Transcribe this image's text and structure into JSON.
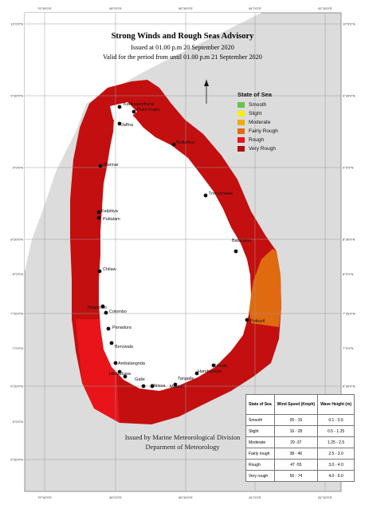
{
  "title": "Strong Winds and Rough Seas Advisory",
  "issued": "Issued at 01.00 p.m 20 September 2020",
  "valid": "Valid for the period from  until 01.00 p.m 21 September 2020",
  "footer": {
    "line1": "Issued by Marine Meteorological Division",
    "line2": "Deparment of Meteorology"
  },
  "axes": {
    "top": [
      "79°30'0\"E",
      "80°0'0\"E",
      "80°30'0\"E",
      "81°0'0\"E",
      "81°30'0\"E"
    ],
    "bottom": [
      "79°30'0\"E",
      "80°0'0\"E",
      "80°30'0\"E",
      "81°0'0\"E",
      "81°30'0\"E"
    ],
    "left": [
      "10°0'0\"N",
      "9°30'0\"N",
      "9°0'0\"N",
      "8°30'0\"N",
      "8°0'0\"N",
      "7°30'0\"N",
      "7°0'0\"N",
      "6°30'0\"N",
      "6°0'0\"N",
      "5°30'0\"N"
    ],
    "right": [
      "10°0'0\"N",
      "9°30'0\"N",
      "9°0'0\"N",
      "8°30'0\"N",
      "8°0'0\"N",
      "7°30'0\"N",
      "7°0'0\"N",
      "6°30'0\"N",
      "6°0'0\"N",
      "5°30'0\"N"
    ]
  },
  "legend": {
    "title": "State of Sea",
    "items": [
      {
        "label": "Smooth",
        "color": "#6cc04a"
      },
      {
        "label": "Slight",
        "color": "#f2f200"
      },
      {
        "label": "Moderate",
        "color": "#f2a900"
      },
      {
        "label": "Fairly Rough",
        "color": "#e06a10"
      },
      {
        "label": "Rough",
        "color": "#e8141a"
      },
      {
        "label": "Very Rough",
        "color": "#b00d0d"
      }
    ]
  },
  "zones": {
    "very_rough": "#c30f0f",
    "rough": "#e8141a",
    "fairly_rough": "#e06a10",
    "land": "#ffffff",
    "sea": "#dcdcdc"
  },
  "places": [
    "Kankasanthurai",
    "Point Pedro",
    "Jaffna",
    "Mullaitivu",
    "Mannar",
    "Trincomalee",
    "Puttalam",
    "Kalpitiya",
    "Batticaloa",
    "Chilaw",
    "Negombo",
    "Colombo",
    "Panadura",
    "Beruwala",
    "Pottuvil",
    "Ambalangoda",
    "Hikkaduwa",
    "Galle",
    "Matara",
    "Mirissa",
    "Tangalle",
    "Hambantota",
    "Kirinda"
  ],
  "table": {
    "headers": [
      "State of Sea",
      "Wind Speed (Kmph)",
      "Wave Height (m)"
    ],
    "rows": [
      [
        "Smooth",
        "05 - 15",
        "0.1 - 0.5"
      ],
      [
        "Slight",
        "16 - 28",
        "0.5 - 1.25"
      ],
      [
        "Moderate",
        "29 -37",
        "1.25 - 2.5"
      ],
      [
        "Fairly rough",
        "38 - 46",
        "2.5 - 3.0"
      ],
      [
        "Rough",
        "47 -55",
        "3.0 - 4.0"
      ],
      [
        "Very rough",
        "56 - 74",
        "4.0 - 6.0"
      ]
    ]
  }
}
